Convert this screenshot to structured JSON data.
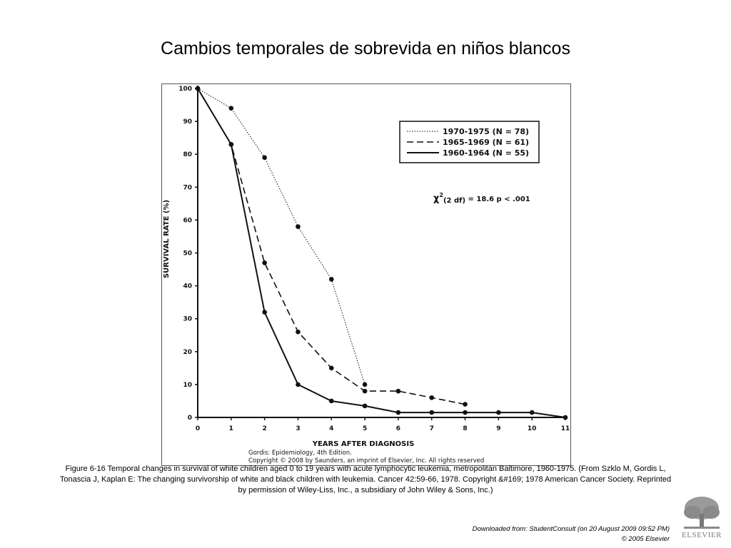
{
  "slide": {
    "title": "Cambios temporales de sobrevida en niños blancos",
    "caption": "Figure 6-16 Temporal changes in survival of white children aged 0 to 19 years with acute lymphocytic leukemia, metropolitan Baltimore, 1960-1975. (From Szklo M, Gordis L, Tonascia J, Kaplan E: The changing survivorship of white and black children with leukemia. Cancer 42:59-66, 1978. Copyright &#169; 1978 American Cancer Society. Reprinted by permission of Wiley-Liss, Inc., a subsidiary of John Wiley & Sons, Inc.)",
    "downloaded": "Downloaded from: StudentConsult (on 20 August 2009 09:52 PM)",
    "copyright": "© 2005 Elsevier",
    "logo_text": "ELSEVIER"
  },
  "figure": {
    "credit_line1": "Gordis: Epidemiology, 4th Edition.",
    "credit_line2": "Copyright © 2008 by Saunders, an imprint of Elsevier, Inc. All rights reserved"
  },
  "chart_data": {
    "type": "line",
    "xlabel": "YEARS AFTER DIAGNOSIS",
    "ylabel": "SURVIVAL RATE (%)",
    "xlim": [
      0,
      11
    ],
    "ylim": [
      0,
      100
    ],
    "x_ticks": [
      0,
      1,
      2,
      3,
      4,
      5,
      6,
      7,
      8,
      9,
      10,
      11
    ],
    "y_ticks": [
      0,
      10,
      20,
      30,
      40,
      50,
      60,
      70,
      80,
      90,
      100
    ],
    "legend_position": "top-right",
    "annotation": {
      "chi_prefix": "χ",
      "chi_exp": "2",
      "chi_sub": "(2 df)",
      "chi_rest": " = 18.6   p < .001"
    },
    "series": [
      {
        "name": "1970-1975 (N = 78)",
        "style": "dotted",
        "x": [
          0,
          1,
          2,
          3,
          4,
          5
        ],
        "y": [
          100,
          94,
          79,
          58,
          42,
          10
        ]
      },
      {
        "name": "1965-1969 (N = 61)",
        "style": "dashed",
        "x": [
          0,
          1,
          2,
          3,
          4,
          5,
          6,
          7,
          8
        ],
        "y": [
          100,
          83,
          47,
          26,
          15,
          8,
          8,
          6,
          4
        ]
      },
      {
        "name": "1960-1964 (N = 55)",
        "style": "solid",
        "x": [
          0,
          1,
          2,
          3,
          4,
          5,
          6,
          7,
          8,
          9,
          10,
          11
        ],
        "y": [
          100,
          83,
          32,
          10,
          5,
          3.5,
          1.5,
          1.5,
          1.5,
          1.5,
          1.5,
          0
        ]
      }
    ]
  }
}
